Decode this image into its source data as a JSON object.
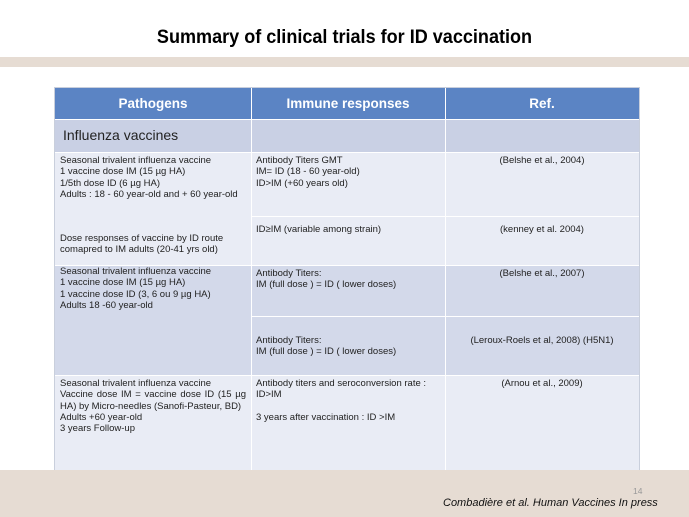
{
  "title": "Summary of clinical trials for ID vaccination",
  "headers": [
    "Pathogens",
    "Immune responses",
    "Ref."
  ],
  "section_label": "Influenza vaccines",
  "rows": [
    {
      "pathogen": [
        "Seasonal trivalent influenza vaccine",
        "1 vaccine dose IM (15 µg HA)",
        "1/5th dose ID (6 µg HA)",
        "Adults : 18 - 60 year-old and + 60 year-old"
      ],
      "response": [
        "Antibody Titers GMT",
        "IM= ID (18 - 60 year-old)",
        "ID>IM (+60 years old)"
      ],
      "ref": "(Belshe et al., 2004)"
    },
    {
      "pathogen": [
        "Dose responses of vaccine by ID route comapred to IM  adults (20-41 yrs old)"
      ],
      "response": [
        "ID≥IM (variable among strain)"
      ],
      "ref": "(kenney et al. 2004)"
    },
    {
      "pathogen": [
        "Seasonal trivalent influenza vaccine",
        "1 vaccine dose IM (15 µg HA)",
        "1 vaccine dose ID (3, 6 ou 9 µg HA)",
        "Adults 18 -60 year-old"
      ],
      "response": [
        "Antibody Titers:",
        "IM (full dose ) = ID ( lower doses)"
      ],
      "ref": "(Belshe et al., 2007)"
    },
    {
      "pathogen": [],
      "response": [
        "Antibody Titers:",
        "IM (full dose ) = ID ( lower doses)"
      ],
      "ref": "(Leroux-Roels et al, 2008) (H5N1)"
    },
    {
      "pathogen": [
        "Seasonal trivalent influenza vaccine",
        "Vaccine dose IM = vaccine dose ID (15 µg HA) by Micro-needles (Sanofi-Pasteur, BD)",
        "Adults +60 year-old",
        "3 years Follow-up"
      ],
      "response": [
        "Antibody titers and seroconversion rate :",
        "ID>IM",
        "",
        "3 years after vaccination : ID >IM"
      ],
      "ref": "(Arnou et al., 2009)"
    }
  ],
  "slide_number": "14",
  "citation": "Combadière et al. Human Vaccines In press",
  "colors": {
    "header": "#5b84c4",
    "section_row": "#c9d0e4",
    "row_light": "#e9ecf5",
    "row_dark": "#d3d9ea",
    "band": "#e6dcd3"
  }
}
